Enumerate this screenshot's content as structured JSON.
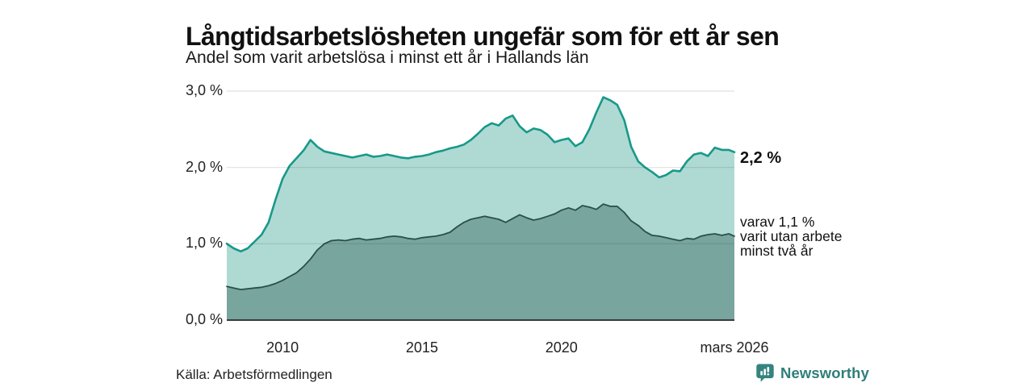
{
  "header": {
    "title": "Långtidsarbetslösheten ungefär som för ett år sen",
    "subtitle": "Andel som varit arbetslösa i minst ett år i Hallands län"
  },
  "chart_data": {
    "type": "area",
    "title": "Långtidsarbetslösheten ungefär som för ett år sen",
    "subtitle": "Andel som varit arbetslösa i minst ett år i Hallands län",
    "unit": "%",
    "xlim": [
      2008.0,
      2026.2
    ],
    "ylim": [
      0,
      3
    ],
    "grid": "horizontal",
    "legend": "none",
    "y_ticks": [
      {
        "value": 0,
        "label": "0,0 %"
      },
      {
        "value": 1,
        "label": "1,0 %"
      },
      {
        "value": 2,
        "label": "2,0 %"
      },
      {
        "value": 3,
        "label": "3,0 %"
      }
    ],
    "x_ticks": [
      {
        "value": 2010,
        "label": "2010"
      },
      {
        "value": 2015,
        "label": "2015"
      },
      {
        "value": 2020,
        "label": "2020"
      },
      {
        "value": 2026.2,
        "label": "mars 2026"
      }
    ],
    "x": [
      2008.0,
      2008.25,
      2008.5,
      2008.75,
      2009.0,
      2009.25,
      2009.5,
      2009.75,
      2010.0,
      2010.25,
      2010.5,
      2010.75,
      2011.0,
      2011.25,
      2011.5,
      2011.75,
      2012.0,
      2012.25,
      2012.5,
      2012.75,
      2013.0,
      2013.25,
      2013.5,
      2013.75,
      2014.0,
      2014.25,
      2014.5,
      2014.75,
      2015.0,
      2015.25,
      2015.5,
      2015.75,
      2016.0,
      2016.25,
      2016.5,
      2016.75,
      2017.0,
      2017.25,
      2017.5,
      2017.75,
      2018.0,
      2018.25,
      2018.5,
      2018.75,
      2019.0,
      2019.25,
      2019.5,
      2019.75,
      2020.0,
      2020.25,
      2020.5,
      2020.75,
      2021.0,
      2021.25,
      2021.5,
      2021.75,
      2022.0,
      2022.25,
      2022.5,
      2022.75,
      2023.0,
      2023.25,
      2023.5,
      2023.75,
      2024.0,
      2024.25,
      2024.5,
      2024.75,
      2025.0,
      2025.25,
      2025.5,
      2025.75,
      2026.0,
      2026.2
    ],
    "series": [
      {
        "name": "Andel arbetslösa minst ett år",
        "slug": "share-one-year",
        "color": "#17998a",
        "fill": "#afdad3",
        "line_width": 2.6,
        "end_label": "2,2 %",
        "end_value": 2.2,
        "values": [
          1.0,
          0.94,
          0.9,
          0.94,
          1.03,
          1.12,
          1.28,
          1.58,
          1.85,
          2.02,
          2.12,
          2.22,
          2.36,
          2.27,
          2.21,
          2.19,
          2.17,
          2.15,
          2.13,
          2.15,
          2.17,
          2.14,
          2.15,
          2.17,
          2.15,
          2.13,
          2.12,
          2.14,
          2.15,
          2.17,
          2.2,
          2.22,
          2.25,
          2.27,
          2.3,
          2.36,
          2.44,
          2.53,
          2.58,
          2.55,
          2.64,
          2.68,
          2.54,
          2.46,
          2.51,
          2.49,
          2.43,
          2.33,
          2.36,
          2.38,
          2.28,
          2.33,
          2.5,
          2.72,
          2.92,
          2.88,
          2.82,
          2.62,
          2.27,
          2.08,
          2.0,
          1.94,
          1.87,
          1.9,
          1.96,
          1.95,
          2.08,
          2.17,
          2.19,
          2.15,
          2.26,
          2.23,
          2.23,
          2.2
        ]
      },
      {
        "name": "varav utan arbete minst två år",
        "slug": "share-two-years",
        "color": "#2a4f4a",
        "fill": "#78a59e",
        "line_width": 1.8,
        "end_label_lines": [
          "varav 1,1 %",
          "varit utan arbete",
          "minst två år"
        ],
        "end_value": 1.1,
        "values": [
          0.44,
          0.42,
          0.4,
          0.41,
          0.42,
          0.43,
          0.45,
          0.48,
          0.52,
          0.57,
          0.62,
          0.7,
          0.8,
          0.92,
          1.0,
          1.04,
          1.05,
          1.04,
          1.06,
          1.07,
          1.05,
          1.06,
          1.07,
          1.09,
          1.1,
          1.09,
          1.07,
          1.06,
          1.08,
          1.09,
          1.1,
          1.12,
          1.15,
          1.22,
          1.28,
          1.32,
          1.34,
          1.36,
          1.34,
          1.32,
          1.28,
          1.33,
          1.38,
          1.34,
          1.31,
          1.33,
          1.36,
          1.39,
          1.44,
          1.47,
          1.44,
          1.5,
          1.48,
          1.45,
          1.52,
          1.49,
          1.49,
          1.41,
          1.3,
          1.24,
          1.16,
          1.11,
          1.1,
          1.08,
          1.06,
          1.04,
          1.07,
          1.06,
          1.1,
          1.12,
          1.13,
          1.11,
          1.13,
          1.1
        ]
      }
    ],
    "gridline_color": "rgba(0,0,0,0.12)",
    "axis_line_color": "#3a3a3a"
  },
  "footer": {
    "source": "Källa: Arbetsförmedlingen",
    "brand": "Newsworthy",
    "brand_color": "#2f7e79"
  }
}
